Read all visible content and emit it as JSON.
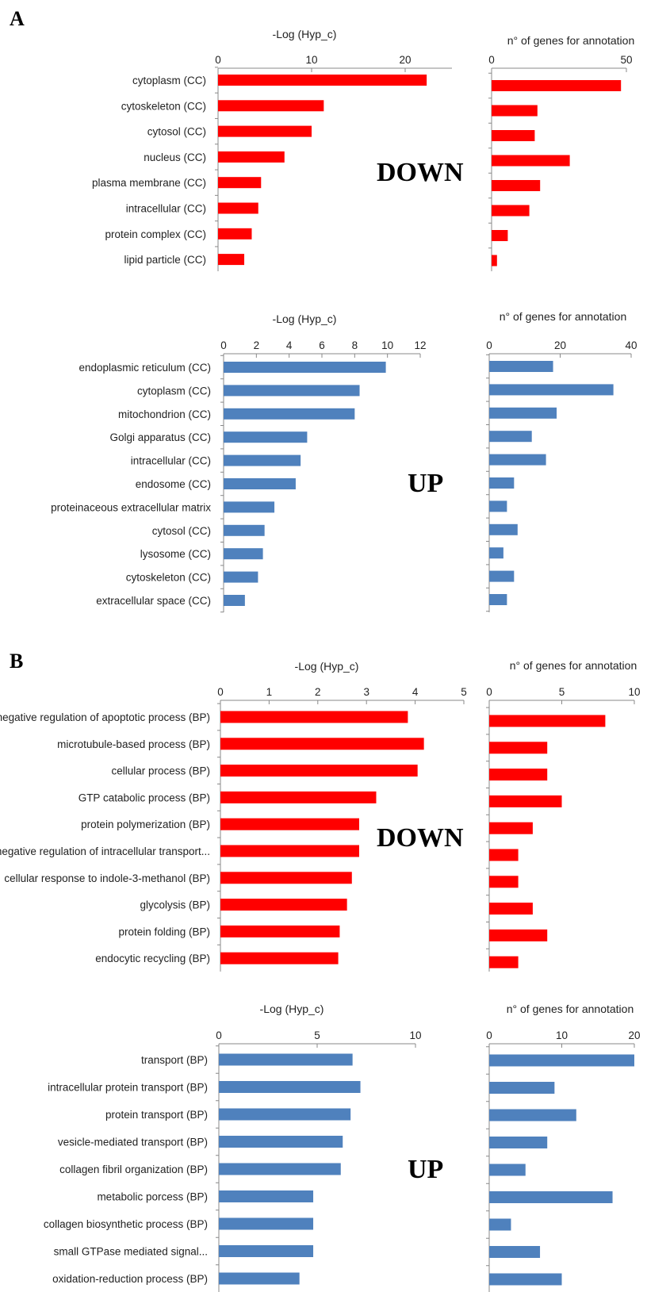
{
  "panels": [
    {
      "letter": "A"
    },
    {
      "letter": "B"
    }
  ],
  "chart_data": [
    {
      "type": "bar",
      "orientation": "horizontal",
      "panel": "A",
      "group": "DOWN",
      "title": "-Log (Hyp_c)",
      "xlim": [
        0,
        25
      ],
      "ticks": [
        0,
        10,
        20
      ],
      "color": "#ff0000",
      "categories": [
        "cytoplasm (CC)",
        "cytoskeleton (CC)",
        "cytosol (CC)",
        "nucleus (CC)",
        "plasma membrane (CC)",
        "intracellular (CC)",
        "protein complex (CC)",
        "lipid particle (CC)"
      ],
      "values": [
        22.3,
        11.3,
        10.0,
        7.1,
        4.6,
        4.3,
        3.6,
        2.8
      ]
    },
    {
      "type": "bar",
      "orientation": "horizontal",
      "panel": "A",
      "group": "DOWN",
      "title": "n° of genes for annotation",
      "xlim": [
        0,
        50
      ],
      "ticks": [
        0,
        50
      ],
      "color": "#ff0000",
      "categories": [
        "cytoplasm (CC)",
        "cytoskeleton (CC)",
        "cytosol (CC)",
        "nucleus (CC)",
        "plasma membrane (CC)",
        "intracellular (CC)",
        "protein complex (CC)",
        "lipid particle (CC)"
      ],
      "values": [
        48,
        17,
        16,
        29,
        18,
        14,
        6,
        2
      ]
    },
    {
      "type": "bar",
      "orientation": "horizontal",
      "panel": "A",
      "group": "UP",
      "title": "-Log (Hyp_c)",
      "xlim": [
        0,
        12
      ],
      "ticks": [
        0,
        2,
        4,
        6,
        8,
        10,
        12
      ],
      "color": "#4f81bd",
      "categories": [
        "endoplasmic reticulum (CC)",
        "cytoplasm (CC)",
        "mitochondrion (CC)",
        "Golgi apparatus (CC)",
        "intracellular (CC)",
        "endosome (CC)",
        "proteinaceous extracellular matrix",
        "cytosol (CC)",
        "lysosome (CC)",
        "cytoskeleton (CC)",
        "extracellular space (CC)"
      ],
      "values": [
        9.9,
        8.3,
        8.0,
        5.1,
        4.7,
        4.4,
        3.1,
        2.5,
        2.4,
        2.1,
        1.3
      ]
    },
    {
      "type": "bar",
      "orientation": "horizontal",
      "panel": "A",
      "group": "UP",
      "title": "n° of genes for annotation",
      "xlim": [
        0,
        40
      ],
      "ticks": [
        0,
        20,
        40
      ],
      "color": "#4f81bd",
      "categories": [
        "endoplasmic reticulum (CC)",
        "cytoplasm (CC)",
        "mitochondrion (CC)",
        "Golgi apparatus (CC)",
        "intracellular (CC)",
        "endosome (CC)",
        "proteinaceous extracellular matrix",
        "cytosol (CC)",
        "lysosome (CC)",
        "cytoskeleton (CC)",
        "extracellular space (CC)"
      ],
      "values": [
        18,
        35,
        19,
        12,
        16,
        7,
        5,
        8,
        4,
        7,
        5
      ]
    },
    {
      "type": "bar",
      "orientation": "horizontal",
      "panel": "B",
      "group": "DOWN",
      "title": "-Log (Hyp_c)",
      "xlim": [
        0,
        5
      ],
      "ticks": [
        0,
        1,
        2,
        3,
        4,
        5
      ],
      "color": "#ff0000",
      "categories": [
        "negative regulation of apoptotic process (BP)",
        "microtubule-based process (BP)",
        "cellular process (BP)",
        "GTP catabolic process (BP)",
        "protein polymerization (BP)",
        "negative regulation of intracellular transport...",
        "cellular response to indole-3-methanol (BP)",
        "glycolysis (BP)",
        "protein folding (BP)",
        "endocytic recycling (BP)"
      ],
      "values": [
        3.85,
        4.18,
        4.05,
        3.2,
        2.85,
        2.85,
        2.7,
        2.6,
        2.45,
        2.42
      ]
    },
    {
      "type": "bar",
      "orientation": "horizontal",
      "panel": "B",
      "group": "DOWN",
      "title": "n° of genes for annotation",
      "xlim": [
        0,
        10
      ],
      "ticks": [
        0,
        5,
        10
      ],
      "color": "#ff0000",
      "categories": [
        "negative regulation of apoptotic process (BP)",
        "microtubule-based process (BP)",
        "cellular process (BP)",
        "GTP catabolic process (BP)",
        "protein polymerization (BP)",
        "negative regulation of intracellular transport...",
        "cellular response to indole-3-methanol (BP)",
        "glycolysis (BP)",
        "protein folding (BP)",
        "endocytic recycling (BP)"
      ],
      "values": [
        8,
        4,
        4,
        5,
        3,
        2,
        2,
        3,
        4,
        2
      ]
    },
    {
      "type": "bar",
      "orientation": "horizontal",
      "panel": "B",
      "group": "UP",
      "title": "-Log (Hyp_c)",
      "xlim": [
        0,
        10
      ],
      "ticks": [
        0,
        5,
        10
      ],
      "color": "#4f81bd",
      "categories": [
        "transport (BP)",
        "intracellular protein transport (BP)",
        "protein transport (BP)",
        "vesicle-mediated transport (BP)",
        "collagen fibril organization (BP)",
        "metabolic porcess (BP)",
        "collagen biosynthetic process (BP)",
        "small GTPase mediated signal...",
        "oxidation-reduction process (BP)"
      ],
      "values": [
        6.8,
        7.2,
        6.7,
        6.3,
        6.2,
        4.8,
        4.8,
        4.8,
        4.1
      ]
    },
    {
      "type": "bar",
      "orientation": "horizontal",
      "panel": "B",
      "group": "UP",
      "title": "n° of genes for annotation",
      "xlim": [
        0,
        20
      ],
      "ticks": [
        0,
        10,
        20
      ],
      "color": "#4f81bd",
      "categories": [
        "transport (BP)",
        "intracellular protein transport (BP)",
        "protein transport (BP)",
        "vesicle-mediated transport (BP)",
        "collagen fibril organization (BP)",
        "metabolic porcess (BP)",
        "collagen biosynthetic process (BP)",
        "small GTPase mediated signal...",
        "oxidation-reduction process (BP)"
      ],
      "values": [
        20,
        9,
        12,
        8,
        5,
        17,
        3,
        7,
        10
      ]
    }
  ]
}
